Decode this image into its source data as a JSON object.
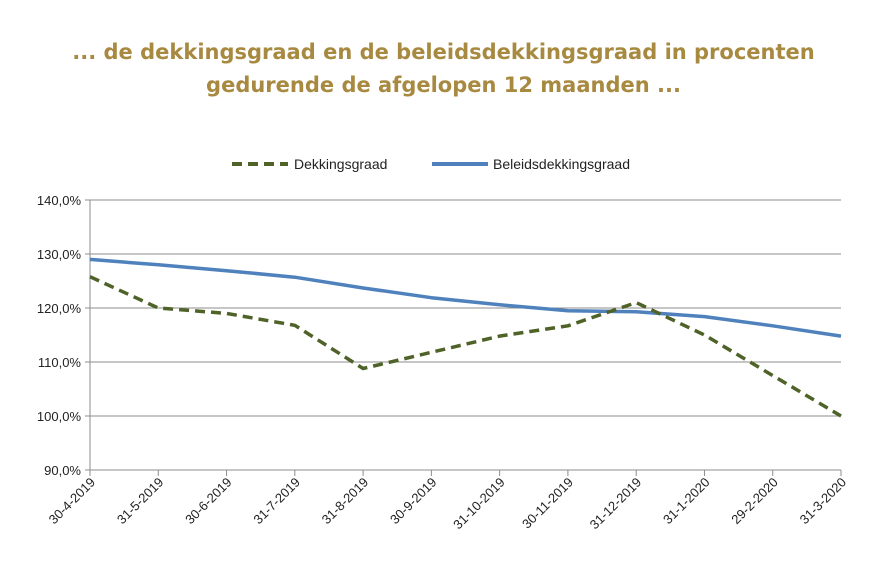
{
  "chart_data": {
    "type": "line",
    "title": "... de dekkingsgraad en de beleidsdekkingsgraad in procenten",
    "subtitle": "gedurende de afgelopen 12 maanden ...",
    "x": [
      "30-4-2019",
      "31-5-2019",
      "30-6-2019",
      "31-7-2019",
      "31-8-2019",
      "30-9-2019",
      "31-10-2019",
      "30-11-2019",
      "31-12-2019",
      "31-1-2020",
      "29-2-2020",
      "31-3-2020"
    ],
    "series": [
      {
        "name": "Dekkingsgraad",
        "color": "#4f6228",
        "style": "dashed",
        "values": [
          125.8,
          120.0,
          119.0,
          116.8,
          108.8,
          111.8,
          114.8,
          116.7,
          121.0,
          115.0,
          107.5,
          100.0
        ]
      },
      {
        "name": "Beleidsdekkingsgraad",
        "color": "#4f81bd",
        "style": "solid",
        "values": [
          129.0,
          128.0,
          126.9,
          125.7,
          123.7,
          121.9,
          120.6,
          119.5,
          119.3,
          118.4,
          116.7,
          114.8
        ]
      }
    ],
    "ylim": [
      90,
      140
    ],
    "yticks": [
      "90,0%",
      "100,0%",
      "110,0%",
      "120,0%",
      "130,0%",
      "140,0%"
    ],
    "grid": "horizontal",
    "legend_position": "top"
  }
}
